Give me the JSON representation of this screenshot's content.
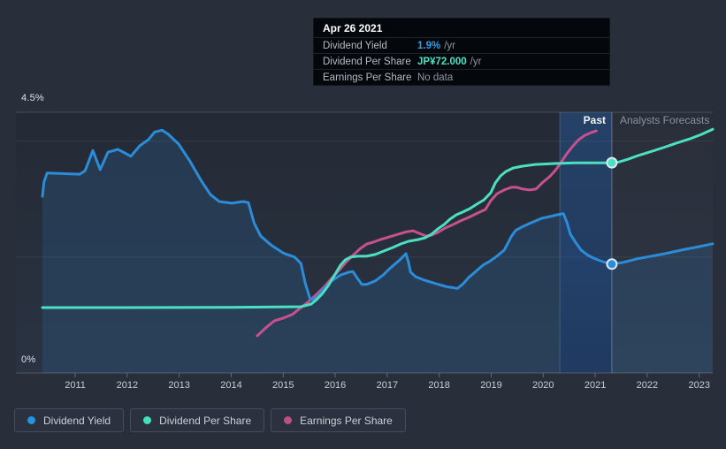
{
  "page": {
    "background": "#282e3a"
  },
  "tooltip": {
    "date": "Apr 26 2021",
    "rows": [
      {
        "label": "Dividend Yield",
        "value": "1.9%",
        "suffix": "/yr",
        "value_color": "#2f9fe6",
        "no_data": false
      },
      {
        "label": "Dividend Per Share",
        "value": "JP¥72.000",
        "suffix": "/yr",
        "value_color": "#49e2c4",
        "no_data": false
      },
      {
        "label": "Earnings Per Share",
        "value": "No data",
        "suffix": "",
        "value_color": "#8f97a2",
        "no_data": true
      }
    ]
  },
  "annotations": {
    "past": "Past",
    "forecast": "Analysts Forecasts"
  },
  "axis": {
    "y_top": "4.5%",
    "y_bottom": "0%"
  },
  "legend": [
    {
      "label": "Dividend Yield",
      "color": "#1e96e3"
    },
    {
      "label": "Dividend Per Share",
      "color": "#43e0c0"
    },
    {
      "label": "Earnings Per Share",
      "color": "#c04d88"
    }
  ],
  "colors": {
    "yield_line": "#2b8dd9",
    "dps_line": "#4ce0c2",
    "eps_line": "#c7518d",
    "divider": "#8fa9c6",
    "band_top": "#26548f",
    "band_bottom": "#1b3663"
  },
  "chart_data": {
    "type": "line",
    "title": "",
    "x_range": [
      2010.37,
      2023.26
    ],
    "x_ticks": [
      2011,
      2012,
      2013,
      2014,
      2015,
      2016,
      2017,
      2018,
      2019,
      2020,
      2021,
      2022,
      2023
    ],
    "yield_axis": {
      "range": [
        0,
        4.5
      ],
      "top_label": "4.5%",
      "bottom_label": "0%",
      "gridlines": [
        2,
        4
      ],
      "unit": "%"
    },
    "yen_axis": {
      "range": [
        0,
        89.3
      ],
      "unit": "JP¥",
      "note_visible": false
    },
    "past_band_x": [
      2020.32,
      2021.32
    ],
    "divider_x": 2021.32,
    "series": [
      {
        "name": "Dividend Yield",
        "unit": "%",
        "scale": "pct",
        "color": "#2b8dd9",
        "area": true,
        "points": [
          [
            2010.37,
            3.05
          ],
          [
            2010.4,
            3.3
          ],
          [
            2010.46,
            3.45
          ],
          [
            2011.09,
            3.43
          ],
          [
            2011.19,
            3.49
          ],
          [
            2011.34,
            3.84
          ],
          [
            2011.48,
            3.51
          ],
          [
            2011.63,
            3.81
          ],
          [
            2011.82,
            3.86
          ],
          [
            2011.95,
            3.8
          ],
          [
            2012.07,
            3.74
          ],
          [
            2012.24,
            3.92
          ],
          [
            2012.41,
            4.03
          ],
          [
            2012.53,
            4.16
          ],
          [
            2012.67,
            4.19
          ],
          [
            2012.79,
            4.12
          ],
          [
            2012.99,
            3.95
          ],
          [
            2013.21,
            3.65
          ],
          [
            2013.43,
            3.31
          ],
          [
            2013.6,
            3.08
          ],
          [
            2013.77,
            2.96
          ],
          [
            2014.01,
            2.93
          ],
          [
            2014.23,
            2.96
          ],
          [
            2014.33,
            2.94
          ],
          [
            2014.44,
            2.59
          ],
          [
            2014.57,
            2.36
          ],
          [
            2014.78,
            2.2
          ],
          [
            2015.0,
            2.07
          ],
          [
            2015.22,
            2.0
          ],
          [
            2015.34,
            1.89
          ],
          [
            2015.42,
            1.56
          ],
          [
            2015.52,
            1.27
          ],
          [
            2015.61,
            1.27
          ],
          [
            2015.76,
            1.43
          ],
          [
            2015.93,
            1.59
          ],
          [
            2016.1,
            1.69
          ],
          [
            2016.26,
            1.74
          ],
          [
            2016.34,
            1.75
          ],
          [
            2016.43,
            1.63
          ],
          [
            2016.51,
            1.53
          ],
          [
            2016.61,
            1.53
          ],
          [
            2016.77,
            1.59
          ],
          [
            2016.92,
            1.69
          ],
          [
            2017.07,
            1.82
          ],
          [
            2017.24,
            1.95
          ],
          [
            2017.36,
            2.06
          ],
          [
            2017.41,
            1.91
          ],
          [
            2017.45,
            1.74
          ],
          [
            2017.55,
            1.66
          ],
          [
            2017.72,
            1.6
          ],
          [
            2017.94,
            1.54
          ],
          [
            2018.14,
            1.49
          ],
          [
            2018.35,
            1.46
          ],
          [
            2018.45,
            1.53
          ],
          [
            2018.57,
            1.65
          ],
          [
            2018.7,
            1.75
          ],
          [
            2018.84,
            1.86
          ],
          [
            2018.96,
            1.92
          ],
          [
            2019.1,
            2.01
          ],
          [
            2019.25,
            2.12
          ],
          [
            2019.39,
            2.36
          ],
          [
            2019.47,
            2.46
          ],
          [
            2019.59,
            2.52
          ],
          [
            2019.76,
            2.59
          ],
          [
            2019.97,
            2.67
          ],
          [
            2020.13,
            2.7
          ],
          [
            2020.27,
            2.73
          ],
          [
            2020.39,
            2.75
          ],
          [
            2020.46,
            2.59
          ],
          [
            2020.52,
            2.4
          ],
          [
            2020.61,
            2.27
          ],
          [
            2020.73,
            2.12
          ],
          [
            2020.86,
            2.03
          ],
          [
            2021.0,
            1.97
          ],
          [
            2021.15,
            1.92
          ],
          [
            2021.32,
            1.88
          ],
          [
            2021.54,
            1.91
          ],
          [
            2021.8,
            1.97
          ],
          [
            2022.05,
            2.01
          ],
          [
            2022.34,
            2.06
          ],
          [
            2022.65,
            2.12
          ],
          [
            2022.99,
            2.18
          ],
          [
            2023.26,
            2.23
          ]
        ]
      },
      {
        "name": "Dividend Per Share",
        "unit": "JP¥",
        "scale": "yen",
        "color": "#4ce0c2",
        "area": false,
        "points": [
          [
            2010.37,
            22.4
          ],
          [
            2012.0,
            22.4
          ],
          [
            2014.0,
            22.5
          ],
          [
            2015.34,
            22.7
          ],
          [
            2015.54,
            23.6
          ],
          [
            2015.64,
            25.1
          ],
          [
            2015.74,
            26.9
          ],
          [
            2015.86,
            29.7
          ],
          [
            2015.98,
            33.3
          ],
          [
            2016.1,
            36.9
          ],
          [
            2016.19,
            38.7
          ],
          [
            2016.29,
            39.7
          ],
          [
            2016.43,
            40.0
          ],
          [
            2016.6,
            40.0
          ],
          [
            2016.77,
            40.6
          ],
          [
            2016.94,
            41.8
          ],
          [
            2017.11,
            43.0
          ],
          [
            2017.26,
            44.2
          ],
          [
            2017.41,
            45.1
          ],
          [
            2017.6,
            45.7
          ],
          [
            2017.73,
            46.3
          ],
          [
            2017.85,
            47.5
          ],
          [
            2017.97,
            49.3
          ],
          [
            2018.09,
            50.8
          ],
          [
            2018.21,
            52.7
          ],
          [
            2018.33,
            54.2
          ],
          [
            2018.45,
            55.1
          ],
          [
            2018.59,
            56.3
          ],
          [
            2018.72,
            57.8
          ],
          [
            2018.86,
            59.3
          ],
          [
            2018.99,
            61.7
          ],
          [
            2019.08,
            65.1
          ],
          [
            2019.18,
            67.5
          ],
          [
            2019.28,
            69.0
          ],
          [
            2019.42,
            70.2
          ],
          [
            2019.59,
            70.8
          ],
          [
            2019.84,
            71.4
          ],
          [
            2020.18,
            71.7
          ],
          [
            2020.61,
            72.0
          ],
          [
            2021.03,
            72.0
          ],
          [
            2021.32,
            72.0
          ],
          [
            2021.46,
            72.3
          ],
          [
            2021.63,
            73.2
          ],
          [
            2021.83,
            74.5
          ],
          [
            2022.05,
            75.7
          ],
          [
            2022.31,
            77.2
          ],
          [
            2022.56,
            78.7
          ],
          [
            2022.82,
            80.2
          ],
          [
            2023.04,
            81.7
          ],
          [
            2023.26,
            83.5
          ]
        ]
      },
      {
        "name": "Earnings Per Share",
        "unit": "JP¥",
        "scale": "yen",
        "color": "#c7518d",
        "area": false,
        "points": [
          [
            2014.5,
            12.7
          ],
          [
            2014.66,
            15.4
          ],
          [
            2014.83,
            17.9
          ],
          [
            2015.0,
            18.8
          ],
          [
            2015.17,
            20.0
          ],
          [
            2015.34,
            22.4
          ],
          [
            2015.49,
            24.5
          ],
          [
            2015.64,
            26.9
          ],
          [
            2015.8,
            29.7
          ],
          [
            2015.93,
            32.4
          ],
          [
            2016.07,
            35.1
          ],
          [
            2016.2,
            37.8
          ],
          [
            2016.36,
            40.6
          ],
          [
            2016.49,
            42.7
          ],
          [
            2016.61,
            44.2
          ],
          [
            2016.73,
            44.8
          ],
          [
            2016.87,
            45.7
          ],
          [
            2017.04,
            46.6
          ],
          [
            2017.21,
            47.5
          ],
          [
            2017.38,
            48.4
          ],
          [
            2017.5,
            48.7
          ],
          [
            2017.62,
            47.8
          ],
          [
            2017.75,
            46.9
          ],
          [
            2017.85,
            47.2
          ],
          [
            2017.97,
            48.1
          ],
          [
            2018.11,
            49.6
          ],
          [
            2018.26,
            50.8
          ],
          [
            2018.41,
            52.1
          ],
          [
            2018.57,
            53.3
          ],
          [
            2018.74,
            54.8
          ],
          [
            2018.89,
            56.0
          ],
          [
            2018.99,
            59.0
          ],
          [
            2019.11,
            61.4
          ],
          [
            2019.25,
            62.7
          ],
          [
            2019.39,
            63.6
          ],
          [
            2019.49,
            63.6
          ],
          [
            2019.61,
            63.0
          ],
          [
            2019.74,
            62.7
          ],
          [
            2019.86,
            63.0
          ],
          [
            2019.98,
            65.1
          ],
          [
            2020.12,
            67.2
          ],
          [
            2020.23,
            69.3
          ],
          [
            2020.34,
            72.0
          ],
          [
            2020.44,
            74.8
          ],
          [
            2020.56,
            77.5
          ],
          [
            2020.68,
            79.9
          ],
          [
            2020.8,
            81.4
          ],
          [
            2020.92,
            82.3
          ],
          [
            2021.02,
            82.9
          ]
        ]
      }
    ],
    "markers": [
      {
        "series": "Dividend Per Share",
        "x": 2021.32,
        "value": 72.0,
        "scale": "yen",
        "color": "#4ce0c2"
      },
      {
        "series": "Dividend Yield",
        "x": 2021.32,
        "value": 1.88,
        "scale": "pct",
        "color": "#2b8dd9"
      }
    ],
    "legend_position": "bottom-left",
    "grid": true
  }
}
